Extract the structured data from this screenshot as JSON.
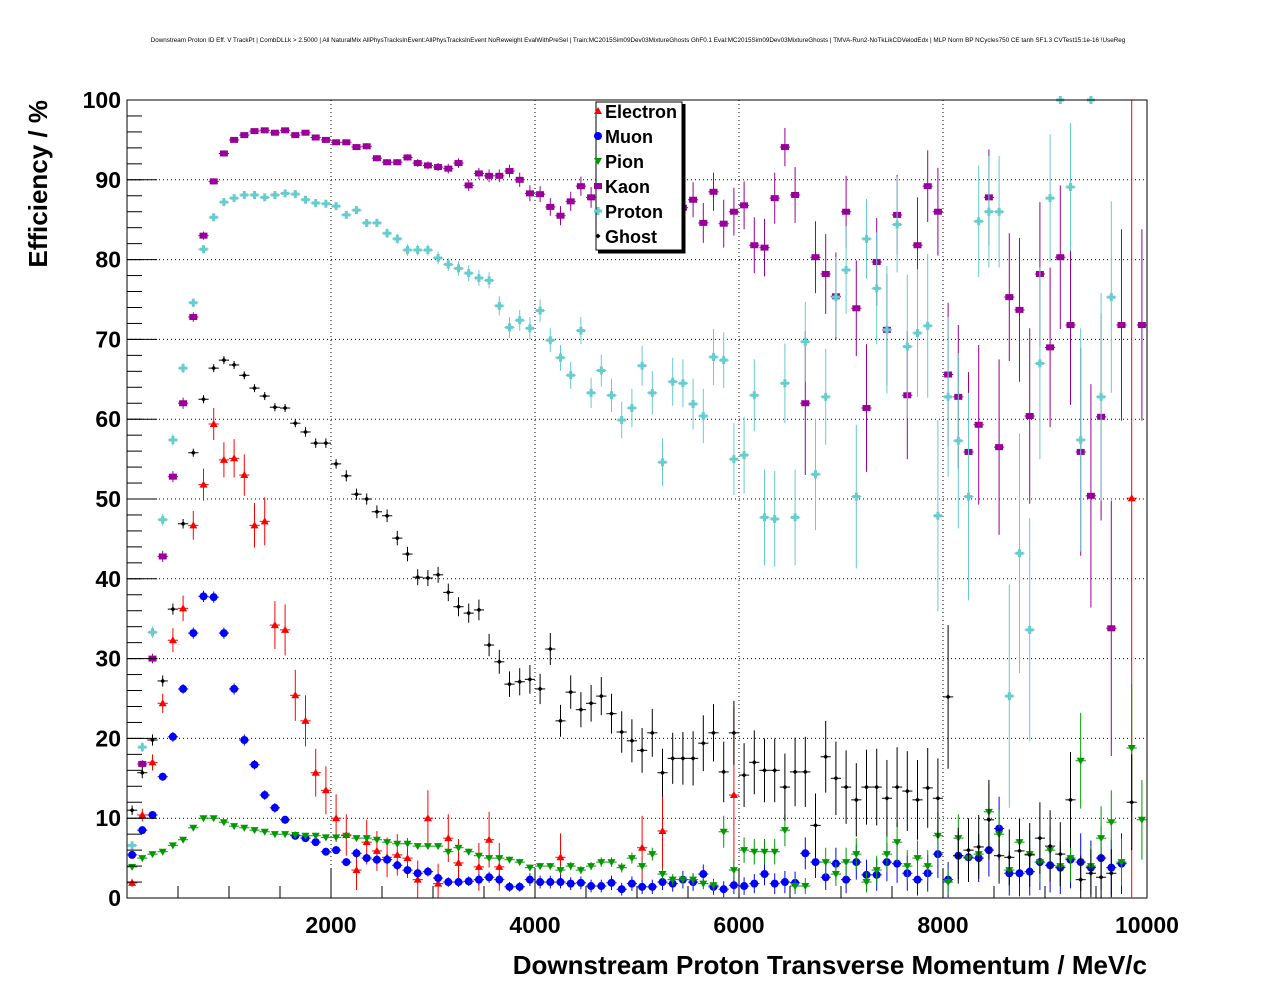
{
  "chart_data": {
    "type": "scatter",
    "title": "Downstream Proton ID Eff. V TrackPt | CombDLLk > 2.5000 | All NaturalMix AllPhysTracksInEvent:AllPhysTracksInEvent NoReweight EvalWithPreSel | Train:MC2015Sim09Dev03MixtureGhosts GhF0.1 Eval:MC2015Sim09Dev03MixtureGhosts | TMVA-Run2-NoTkLikCDVelodEdx | MLP Norm BP NCycles750 CE tanh SF1.3 CVTest15:1e-16 !UseReg",
    "xlabel": "Downstream Proton Transverse Momentum / MeV/c",
    "ylabel": "Efficiency / %",
    "xlim": [
      0,
      10000
    ],
    "ylim": [
      0,
      100
    ],
    "xticks": [
      "2000",
      "4000",
      "6000",
      "8000",
      "10000"
    ],
    "yticks": [
      "0",
      "10",
      "20",
      "30",
      "40",
      "50",
      "60",
      "70",
      "80",
      "90",
      "100"
    ],
    "grid": true,
    "legend_position": "top-center",
    "bin_width": 100,
    "x_first_center": 50,
    "series": [
      {
        "name": "Electron",
        "color": "#ff0000",
        "marker": "triangle-up",
        "y": [
          1.9,
          10.4,
          17,
          24.4,
          32.3,
          36.3,
          46.7,
          51.8,
          59.4,
          54.9,
          55.1,
          53,
          46.7,
          47.2,
          34.2,
          33.6,
          25.4,
          22.2,
          15.7,
          13.5,
          10,
          7.9,
          3.5,
          7,
          5.9,
          5.1,
          5.4,
          5,
          2.3,
          10,
          1.8,
          7.5,
          4.4,
          null,
          3.9,
          7.3,
          3.9,
          null,
          null,
          null,
          null,
          null,
          5.1,
          null,
          null,
          null,
          null,
          null,
          null,
          null,
          6.3,
          null,
          8.4,
          null,
          null,
          null,
          null,
          null,
          null,
          12.9,
          null,
          null,
          null,
          null,
          null,
          null,
          null,
          null,
          null,
          null,
          null,
          null,
          null,
          null,
          null,
          null,
          null,
          null,
          null,
          null,
          null,
          null,
          null,
          null,
          null,
          null,
          null,
          null,
          null,
          null,
          null,
          null,
          null,
          null,
          null,
          null,
          null,
          null,
          50.1,
          null
        ],
        "err": [
          0.5,
          0.8,
          1,
          1.2,
          1.5,
          1.6,
          1.8,
          2,
          2,
          2.2,
          2.4,
          2.6,
          2.8,
          3,
          3,
          3.2,
          3.2,
          3.2,
          3,
          3,
          3,
          2.6,
          2.5,
          2.8,
          2.5,
          2.5,
          2.6,
          2.5,
          2.4,
          3.5,
          2.5,
          3,
          3,
          0,
          3,
          3.5,
          3,
          0,
          0,
          0,
          0,
          0,
          3,
          0,
          0,
          0,
          0,
          0,
          0,
          0,
          4,
          0,
          5,
          0,
          0,
          0,
          0,
          0,
          0,
          11,
          0,
          0,
          0,
          0,
          0,
          0,
          0,
          0,
          0,
          0,
          0,
          0,
          0,
          0,
          0,
          0,
          0,
          0,
          0,
          0,
          0,
          0,
          0,
          0,
          0,
          0,
          0,
          0,
          0,
          0,
          0,
          0,
          0,
          0,
          0,
          0,
          0,
          0,
          50,
          0
        ]
      },
      {
        "name": "Muon",
        "color": "#0000ff",
        "marker": "circle",
        "y": [
          5.4,
          8.5,
          10.4,
          15.2,
          20.2,
          26.2,
          33.2,
          37.8,
          37.7,
          33.2,
          26.2,
          19.8,
          16.7,
          12.9,
          11.3,
          9.8,
          7.8,
          7.5,
          7,
          5.8,
          6,
          4.5,
          5.6,
          5,
          4.8,
          4.8,
          4.1,
          3.5,
          3.1,
          3.3,
          2.5,
          2,
          2,
          2.1,
          2.3,
          2.6,
          2.3,
          1.4,
          1.4,
          2.3,
          2,
          2,
          2,
          1.8,
          1.9,
          1.5,
          1.5,
          1.9,
          1.1,
          1.8,
          1.4,
          1.4,
          2,
          1.8,
          2.3,
          2,
          3,
          1.4,
          1.1,
          1.6,
          1.5,
          1.8,
          3,
          1.8,
          2,
          1.9,
          5.6,
          4.5,
          2.6,
          4.3,
          2.3,
          4.5,
          2.9,
          2.9,
          4.5,
          4.3,
          3.1,
          2.3,
          3.1,
          5.5,
          2.3,
          5.3,
          5.1,
          5,
          6,
          8.7,
          3.1,
          3.1,
          3.3,
          4.5,
          4.1,
          3.8,
          4.8,
          4.5,
          3.8,
          5,
          3.8,
          4.3,
          null,
          null
        ],
        "err": [
          0.3,
          0.4,
          0.4,
          0.5,
          0.6,
          0.6,
          0.7,
          0.7,
          0.7,
          0.7,
          0.7,
          0.7,
          0.6,
          0.6,
          0.6,
          0.5,
          0.5,
          0.5,
          0.5,
          0.5,
          0.5,
          0.5,
          0.6,
          0.6,
          0.6,
          0.6,
          0.6,
          0.6,
          0.6,
          0.6,
          0.6,
          0.6,
          0.6,
          0.6,
          0.7,
          0.7,
          0.7,
          0.6,
          0.6,
          0.8,
          0.8,
          0.8,
          0.8,
          0.8,
          0.8,
          0.8,
          0.8,
          0.9,
          0.8,
          0.9,
          0.9,
          0.9,
          1,
          1,
          1.1,
          1.1,
          1.2,
          1,
          1,
          1.1,
          1.1,
          1.2,
          1.4,
          1.3,
          1.4,
          1.4,
          2,
          2,
          1.6,
          2,
          1.7,
          2.2,
          1.9,
          2,
          2.4,
          2.4,
          2.2,
          2,
          2.3,
          3,
          2.2,
          3,
          3,
          3,
          3.3,
          4,
          2.8,
          2.9,
          3,
          3.5,
          3.4,
          3.3,
          3.6,
          3.6,
          3.4,
          4,
          3.5,
          3.8,
          0,
          0
        ]
      },
      {
        "name": "Pion",
        "color": "#009900",
        "marker": "triangle-down",
        "y": [
          3.9,
          5,
          5.5,
          5.8,
          6.6,
          7.3,
          8.8,
          10,
          10,
          9.5,
          9,
          8.8,
          8.5,
          8.3,
          8,
          8,
          7.9,
          7.8,
          7.8,
          7.6,
          7.6,
          7.8,
          7.5,
          7.5,
          7.3,
          7,
          6.8,
          6.8,
          6.5,
          6.5,
          6.5,
          5.8,
          6.3,
          5.8,
          5.3,
          5,
          5,
          4.8,
          4.5,
          3.8,
          4,
          4,
          3.5,
          4,
          3.5,
          4,
          4.5,
          4.5,
          3.8,
          5,
          4,
          5.5,
          3,
          2.3,
          2.3,
          2.3,
          1.8,
          1.6,
          8.3,
          3.5,
          6,
          5.8,
          5.8,
          5.8,
          8.5,
          1.5,
          1.5,
          null,
          4.5,
          3,
          4.5,
          5.5,
          2,
          3.5,
          5.5,
          7,
          4,
          5,
          4,
          7.8,
          2,
          7.5,
          5,
          5.5,
          10.8,
          8,
          3.5,
          7,
          5.5,
          4.5,
          6,
          4,
          5,
          17.2,
          4,
          7.5,
          9.5,
          4.5,
          18.8,
          9.8
        ],
        "err": [
          0.3,
          0.3,
          0.3,
          0.3,
          0.3,
          0.3,
          0.3,
          0.3,
          0.3,
          0.3,
          0.3,
          0.3,
          0.3,
          0.3,
          0.3,
          0.3,
          0.3,
          0.3,
          0.3,
          0.3,
          0.3,
          0.3,
          0.3,
          0.3,
          0.3,
          0.3,
          0.3,
          0.3,
          0.3,
          0.3,
          0.3,
          0.4,
          0.4,
          0.4,
          0.4,
          0.4,
          0.4,
          0.4,
          0.4,
          0.4,
          0.4,
          0.4,
          0.5,
          0.5,
          0.5,
          0.5,
          0.6,
          0.6,
          0.6,
          0.7,
          0.7,
          0.8,
          0.7,
          0.7,
          0.7,
          0.7,
          0.7,
          0.7,
          2,
          1.2,
          1.6,
          1.6,
          1.6,
          1.6,
          2,
          1,
          1,
          0,
          1.8,
          1.5,
          1.8,
          2,
          1.3,
          1.8,
          2.2,
          2.5,
          2,
          2.2,
          2,
          3,
          1.6,
          3,
          2.5,
          2.5,
          3.5,
          3,
          2,
          3,
          3,
          2.5,
          3,
          2.5,
          3,
          6,
          2.5,
          4,
          4,
          3,
          8,
          5
        ]
      },
      {
        "name": "Kaon",
        "color": "#990099",
        "marker": "square",
        "y": [
          null,
          16.8,
          30,
          42.8,
          52.8,
          62,
          72.8,
          83,
          89.8,
          93.3,
          95,
          95.6,
          96.1,
          96.2,
          95.9,
          96.2,
          95.6,
          95.9,
          95.3,
          95,
          94.7,
          94.7,
          94.1,
          94.2,
          92.7,
          92.2,
          92.2,
          92.8,
          92.1,
          91.8,
          91.6,
          91.4,
          92.1,
          89.3,
          90.8,
          90.5,
          90.5,
          91.1,
          90,
          88.3,
          88.2,
          86.6,
          85.5,
          87.3,
          89.2,
          87.8,
          86.2,
          86.6,
          84.3,
          85.5,
          86.5,
          87,
          86.2,
          88.7,
          86.5,
          87.5,
          84.6,
          88.5,
          84.5,
          86,
          86.8,
          81.8,
          81.5,
          87.7,
          94.1,
          88.1,
          62,
          80.3,
          78.2,
          75.4,
          86,
          73.9,
          61.4,
          79.7,
          71.2,
          85.6,
          63,
          81.8,
          89.2,
          86,
          65.6,
          62.8,
          55.9,
          59.3,
          87.8,
          56.5,
          75.3,
          73.7,
          60.4,
          78.2,
          69,
          80.3,
          71.8,
          55.9,
          50.4,
          60.3,
          33.8,
          71.8,
          null,
          71.8
        ],
        "err": [
          0,
          0.5,
          0.6,
          0.7,
          0.7,
          0.7,
          0.6,
          0.5,
          0.4,
          0.3,
          0.3,
          0.3,
          0.3,
          0.3,
          0.3,
          0.3,
          0.3,
          0.3,
          0.3,
          0.3,
          0.3,
          0.3,
          0.3,
          0.4,
          0.4,
          0.4,
          0.4,
          0.4,
          0.5,
          0.5,
          0.5,
          0.6,
          0.6,
          0.7,
          0.7,
          0.8,
          0.8,
          0.8,
          0.9,
          1,
          1,
          1.1,
          1.2,
          1.2,
          1.2,
          1.3,
          1.4,
          1.5,
          1.7,
          1.7,
          1.8,
          1.9,
          2,
          2,
          2.1,
          2.2,
          2.5,
          2.4,
          3,
          3,
          3,
          3.5,
          3.6,
          3.2,
          2.4,
          3.5,
          9,
          4.5,
          5,
          5.5,
          4.5,
          6,
          8,
          5.5,
          7,
          5,
          8,
          6,
          4.5,
          5.5,
          9,
          9,
          10,
          10,
          6,
          11,
          8,
          9,
          11,
          9,
          10,
          9,
          10,
          13,
          14,
          13,
          16,
          12,
          0,
          12
        ]
      },
      {
        "name": "Proton",
        "color": "#66cccc",
        "marker": "plus",
        "y": [
          6.6,
          18.9,
          33.3,
          47.4,
          57.4,
          66.4,
          74.6,
          81.3,
          85.3,
          87.2,
          87.7,
          88.1,
          88.1,
          87.8,
          88.1,
          88.3,
          88.2,
          87.5,
          87.1,
          87,
          86.7,
          85.6,
          86.2,
          84.6,
          84.6,
          83.3,
          82.6,
          81.2,
          81.2,
          81.2,
          80.2,
          79.4,
          78.9,
          78.3,
          77.7,
          77.4,
          74.2,
          71.5,
          72.4,
          71.4,
          73.6,
          69.9,
          67.7,
          65.5,
          71.1,
          63.3,
          66.1,
          63,
          59.9,
          61.4,
          66.7,
          63.3,
          54.6,
          64.7,
          64.5,
          61.9,
          60.4,
          67.8,
          67.4,
          55,
          55.5,
          63,
          47.7,
          47.5,
          64.5,
          47.7,
          69.7,
          53.1,
          62.8,
          75.3,
          78.7,
          50.3,
          82.6,
          76.4,
          71.2,
          84.4,
          69.1,
          70.8,
          71.7,
          47.9,
          62.8,
          57.3,
          50.3,
          84.8,
          86,
          86,
          25.3,
          43.2,
          33.6,
          67,
          87.7,
          100,
          89.1,
          57.4,
          100,
          62.8,
          75.3,
          null,
          null,
          null
        ],
        "err": [
          0.4,
          0.6,
          0.7,
          0.7,
          0.7,
          0.6,
          0.5,
          0.4,
          0.4,
          0.3,
          0.3,
          0.3,
          0.3,
          0.3,
          0.3,
          0.3,
          0.3,
          0.3,
          0.3,
          0.4,
          0.4,
          0.4,
          0.5,
          0.5,
          0.5,
          0.6,
          0.6,
          0.7,
          0.7,
          0.7,
          0.8,
          0.8,
          0.9,
          1,
          1,
          1,
          1.2,
          1.3,
          1.3,
          1.4,
          1.4,
          1.5,
          1.6,
          1.7,
          1.7,
          1.9,
          2,
          2.1,
          2.3,
          2.4,
          2.5,
          2.7,
          3,
          3,
          3,
          3.2,
          3.4,
          3.5,
          3.5,
          4.5,
          4.8,
          4.5,
          6,
          6,
          5,
          6,
          5,
          7,
          6,
          5,
          5.5,
          9,
          5,
          7,
          8,
          6,
          9,
          8,
          9,
          12,
          10,
          11,
          13,
          7,
          7,
          7,
          14,
          15,
          14,
          12,
          8,
          0,
          8,
          14,
          0,
          13,
          12,
          0,
          0,
          0
        ]
      },
      {
        "name": "Ghost",
        "color": "#000000",
        "marker": "diamond",
        "y": [
          11,
          15.7,
          19.8,
          27.2,
          36.2,
          46.9,
          55.8,
          62.5,
          66.4,
          67.4,
          66.8,
          65.5,
          63.9,
          62.9,
          61.5,
          61.4,
          59.5,
          58.4,
          57,
          57,
          54.4,
          52.9,
          50.6,
          50,
          48.4,
          47.9,
          45.1,
          43.1,
          40.2,
          40.1,
          40.5,
          38.3,
          36.5,
          35.7,
          36.1,
          31.7,
          29.6,
          26.8,
          27.1,
          27.4,
          26.2,
          31.2,
          22.2,
          25.8,
          23.6,
          24.4,
          25.3,
          23.1,
          20.8,
          19.7,
          18.5,
          20.7,
          15.7,
          17.5,
          17.5,
          17.5,
          19.4,
          20.7,
          15.8,
          20.7,
          15.4,
          17,
          16,
          16,
          13.9,
          15.8,
          15.8,
          9.1,
          17.7,
          15,
          13.9,
          12.3,
          13.9,
          13.9,
          12.5,
          13.9,
          13.4,
          12.3,
          13.8,
          12.5,
          25.2,
          5.3,
          6,
          6.4,
          9.8,
          5.3,
          5.1,
          5.9,
          5.4,
          7.5,
          6.5,
          5.5,
          12.3,
          2.3,
          3.1,
          2.6,
          3.1,
          null,
          12,
          null
        ],
        "err": [
          0.6,
          0.7,
          0.7,
          0.7,
          0.7,
          0.6,
          0.5,
          0.5,
          0.5,
          0.5,
          0.5,
          0.5,
          0.5,
          0.5,
          0.5,
          0.5,
          0.5,
          0.6,
          0.6,
          0.6,
          0.6,
          0.7,
          0.7,
          0.7,
          0.8,
          0.8,
          0.9,
          0.9,
          1,
          1,
          1,
          1.1,
          1.2,
          1.2,
          1.3,
          1.4,
          1.5,
          1.6,
          1.7,
          1.8,
          1.9,
          2,
          2,
          2.1,
          2.2,
          2.3,
          2.4,
          2.5,
          2.6,
          2.7,
          2.8,
          3,
          3,
          3.2,
          3.3,
          3.4,
          3.5,
          3.6,
          3.8,
          4,
          4,
          4,
          4,
          4,
          4.2,
          4.3,
          4.4,
          4,
          4.5,
          4.6,
          4.6,
          4.6,
          4.7,
          4.8,
          4.8,
          5,
          5,
          5,
          5,
          5,
          9,
          3.5,
          4,
          4,
          5,
          3.5,
          3.5,
          4,
          4,
          4.5,
          4.5,
          4,
          6,
          3,
          3,
          3,
          3,
          0,
          6,
          0
        ]
      }
    ]
  }
}
